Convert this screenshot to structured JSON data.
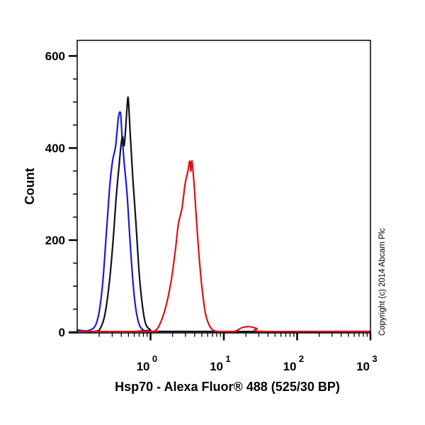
{
  "chart_data": {
    "type": "line",
    "subtype": "flow-cytometry-histogram-overlay",
    "title": "",
    "xlabel": "Hsp70 - Alexa Fluor® 488 (525/30 BP)",
    "ylabel": "Count",
    "xscale": "log",
    "xlim_log10": [
      -1,
      3
    ],
    "ylim": [
      0,
      630
    ],
    "x_ticks": [
      {
        "value": 1,
        "base": "10",
        "exp": "0"
      },
      {
        "value": 10,
        "base": "10",
        "exp": "1"
      },
      {
        "value": 100,
        "base": "10",
        "exp": "2"
      },
      {
        "value": 1000,
        "base": "10",
        "exp": "3"
      }
    ],
    "y_ticks": [
      0,
      200,
      400,
      600
    ],
    "y_minor_step": 50,
    "grid": false,
    "legend": null,
    "annotation": "Copyright (c) 2014 Abcam Plc",
    "series": [
      {
        "name": "blue",
        "color": "#1a1ad6",
        "points_log10x": [
          [
            -1.0,
            5
          ],
          [
            -0.9,
            3
          ],
          [
            -0.82,
            5
          ],
          [
            -0.75,
            15
          ],
          [
            -0.7,
            45
          ],
          [
            -0.65,
            110
          ],
          [
            -0.6,
            220
          ],
          [
            -0.56,
            310
          ],
          [
            -0.52,
            370
          ],
          [
            -0.48,
            400
          ],
          [
            -0.46,
            430
          ],
          [
            -0.44,
            465
          ],
          [
            -0.42,
            478
          ],
          [
            -0.405,
            470
          ],
          [
            -0.39,
            430
          ],
          [
            -0.36,
            370
          ],
          [
            -0.32,
            300
          ],
          [
            -0.28,
            200
          ],
          [
            -0.24,
            110
          ],
          [
            -0.2,
            50
          ],
          [
            -0.15,
            15
          ],
          [
            -0.08,
            3
          ],
          [
            0.0,
            0
          ],
          [
            3.0,
            0
          ]
        ]
      },
      {
        "name": "black",
        "color": "#101020",
        "points_log10x": [
          [
            -1.0,
            0
          ],
          [
            -0.75,
            2
          ],
          [
            -0.68,
            10
          ],
          [
            -0.62,
            40
          ],
          [
            -0.56,
            110
          ],
          [
            -0.51,
            200
          ],
          [
            -0.47,
            290
          ],
          [
            -0.43,
            360
          ],
          [
            -0.4,
            410
          ],
          [
            -0.38,
            425
          ],
          [
            -0.36,
            405
          ],
          [
            -0.34,
            440
          ],
          [
            -0.32,
            490
          ],
          [
            -0.305,
            510
          ],
          [
            -0.29,
            470
          ],
          [
            -0.27,
            410
          ],
          [
            -0.24,
            330
          ],
          [
            -0.2,
            240
          ],
          [
            -0.16,
            140
          ],
          [
            -0.12,
            70
          ],
          [
            -0.07,
            20
          ],
          [
            0.0,
            5
          ],
          [
            0.05,
            0
          ],
          [
            3.0,
            0
          ]
        ]
      },
      {
        "name": "red",
        "color": "#e01010",
        "points_log10x": [
          [
            -1.0,
            0
          ],
          [
            0.0,
            0
          ],
          [
            0.06,
            3
          ],
          [
            0.12,
            15
          ],
          [
            0.2,
            50
          ],
          [
            0.28,
            110
          ],
          [
            0.34,
            180
          ],
          [
            0.38,
            235
          ],
          [
            0.43,
            270
          ],
          [
            0.47,
            320
          ],
          [
            0.51,
            350
          ],
          [
            0.535,
            372
          ],
          [
            0.55,
            350
          ],
          [
            0.565,
            372
          ],
          [
            0.59,
            330
          ],
          [
            0.62,
            260
          ],
          [
            0.66,
            170
          ],
          [
            0.7,
            100
          ],
          [
            0.75,
            40
          ],
          [
            0.82,
            10
          ],
          [
            0.9,
            2
          ],
          [
            1.0,
            0
          ],
          [
            1.15,
            2
          ],
          [
            1.25,
            10
          ],
          [
            1.35,
            12
          ],
          [
            1.45,
            8
          ],
          [
            1.55,
            0
          ],
          [
            3.0,
            0
          ]
        ]
      }
    ]
  },
  "plot": {
    "y_axis_title": "Count",
    "x_axis_title": "Hsp70 - Alexa Fluor® 488 (525/30 BP)",
    "copyright": "Copyright (c) 2014 Abcam Plc"
  }
}
